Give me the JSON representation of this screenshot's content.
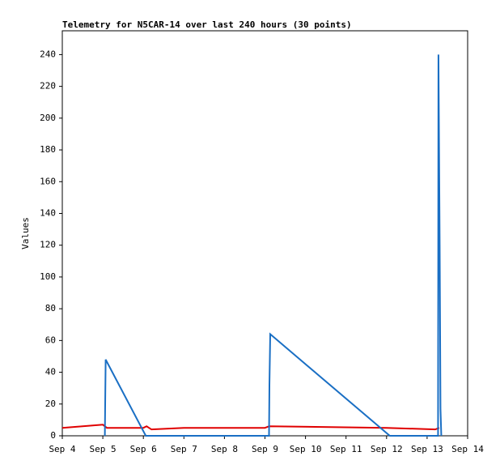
{
  "chart_data": {
    "type": "line",
    "title": "Telemetry for N5CAR-14 over last 240 hours (30 points)",
    "y_label": "Values",
    "xlim": [
      4,
      14
    ],
    "xticks": [
      {
        "value": 4,
        "label": "Sep 4"
      },
      {
        "value": 5,
        "label": "Sep 5"
      },
      {
        "value": 6,
        "label": "Sep 6"
      },
      {
        "value": 7,
        "label": "Sep 7"
      },
      {
        "value": 8,
        "label": "Sep 8"
      },
      {
        "value": 9,
        "label": "Sep 9"
      },
      {
        "value": 10,
        "label": "Sep 10"
      },
      {
        "value": 11,
        "label": "Sep 11"
      },
      {
        "value": 12,
        "label": "Sep 12"
      },
      {
        "value": 13,
        "label": "Sep 13"
      },
      {
        "value": 14,
        "label": "Sep 14"
      }
    ],
    "ylim": [
      0,
      255
    ],
    "yticks": [
      0,
      20,
      40,
      60,
      80,
      100,
      120,
      140,
      160,
      180,
      200,
      220,
      240
    ],
    "series": [
      {
        "color": "#e00000",
        "x": [
          4.0,
          5.0,
          5.1,
          6.0,
          6.08,
          6.2,
          7.0,
          9.0,
          9.1,
          12.0,
          13.2,
          13.3
        ],
        "values": [
          5,
          7,
          5,
          5,
          6,
          4,
          5,
          5,
          6,
          5,
          4,
          5
        ]
      },
      {
        "color": "#1a6fc4",
        "x": [
          5.05,
          5.06,
          5.07,
          6.06,
          9.1,
          9.11,
          9.13,
          12.08,
          13.27,
          13.28,
          13.31,
          13.33,
          13.35
        ],
        "values": [
          0,
          25,
          48,
          0,
          0,
          32,
          64,
          0,
          0,
          240,
          120,
          17,
          0
        ]
      }
    ]
  }
}
